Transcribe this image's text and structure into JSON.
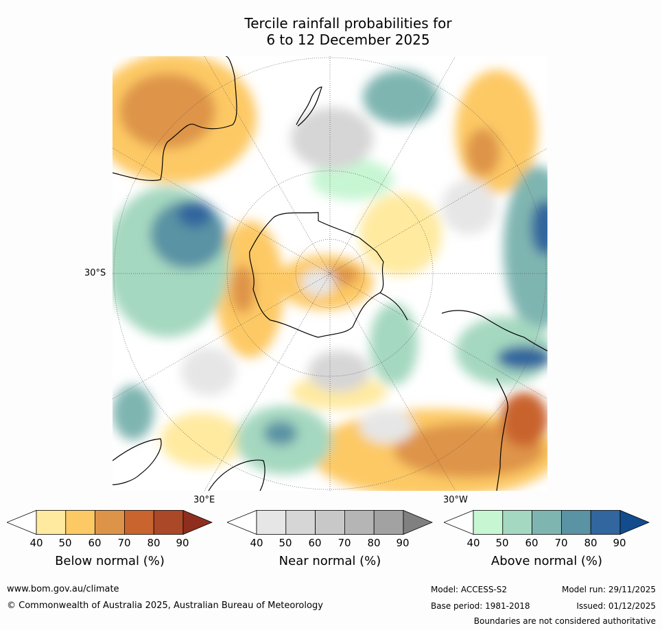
{
  "title": {
    "line1": "Tercile rainfall probabilities for",
    "line2": "6 to 12 December 2025"
  },
  "map": {
    "lat_label": "30°S",
    "lon_label_east": "30°E",
    "lon_label_west": "30°W"
  },
  "colorbars": [
    {
      "title": "Below normal (%)",
      "ticks": [
        "40",
        "50",
        "60",
        "70",
        "80",
        "90"
      ],
      "colors": [
        "#ffffff",
        "#ffeaa0",
        "#fdc965",
        "#de9448",
        "#c9642f",
        "#aa4827",
        "#8f2e1e"
      ]
    },
    {
      "title": "Near normal (%)",
      "ticks": [
        "40",
        "50",
        "60",
        "70",
        "80",
        "90"
      ],
      "colors": [
        "#ffffff",
        "#e6e6e6",
        "#d6d6d6",
        "#c8c8c8",
        "#b5b5b5",
        "#a2a2a2",
        "#808080"
      ]
    },
    {
      "title": "Above normal (%)",
      "ticks": [
        "40",
        "50",
        "60",
        "70",
        "80",
        "90"
      ],
      "colors": [
        "#ffffff",
        "#c7f6d3",
        "#a5d8c0",
        "#7fb5b1",
        "#5a93a4",
        "#31669e",
        "#134c8c"
      ]
    }
  ],
  "footer": {
    "website": "www.bom.gov.au/climate",
    "copyright": "© Commonwealth of Australia 2025, Australian Bureau of Meteorology",
    "model": "Model: ACCESS-S2",
    "base_period": "Base period: 1981-2018",
    "model_run": "Model run: 29/11/2025",
    "issued": "Issued: 01/12/2025",
    "disclaimer": "Boundaries are not considered authoritative"
  }
}
